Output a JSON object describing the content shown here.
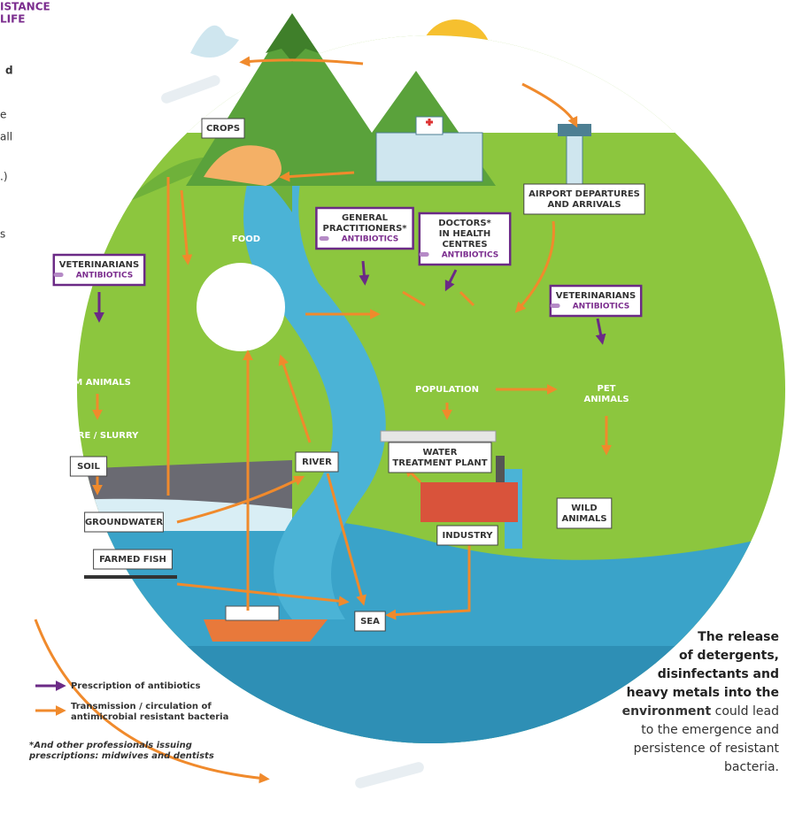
{
  "header": {
    "title_lines": [
      "ISTANCE",
      "LIFE"
    ]
  },
  "left_fragments": [
    "d",
    "e",
    "all",
    ".)",
    "s"
  ],
  "nodes": [
    {
      "label": [
        "CROPS"
      ]
    },
    {
      "label": [
        "FOOD"
      ]
    },
    {
      "label": [
        "GENERAL",
        "PRACTITIONERS*"
      ],
      "tag": "ANTIBIOTICS"
    },
    {
      "label": [
        "DOCTORS*",
        "IN HEALTH",
        "CENTRES"
      ],
      "tag": "ANTIBIOTICS"
    },
    {
      "label": [
        "AIRPORT DEPARTURES",
        "AND ARRIVALS"
      ]
    },
    {
      "label": [
        "VETERINARIANS"
      ],
      "tag": "ANTIBIOTICS"
    },
    {
      "label": [
        "VETERINARIANS"
      ],
      "tag": "ANTIBIOTICS"
    },
    {
      "label": [
        "FARM ANIMALS"
      ]
    },
    {
      "label": [
        "MANURE / SLURRY"
      ]
    },
    {
      "label": [
        "SOIL"
      ]
    },
    {
      "label": [
        "GROUNDWATER"
      ]
    },
    {
      "label": [
        "FARMED FISH"
      ]
    },
    {
      "label": [
        "RIVER"
      ]
    },
    {
      "label": [
        "WATER",
        "TREATMENT PLANT"
      ]
    },
    {
      "label": [
        "INDUSTRY"
      ]
    },
    {
      "label": [
        "SEA"
      ]
    },
    {
      "label": [
        "POPULATION"
      ]
    },
    {
      "label": [
        "PET",
        "ANIMALS"
      ]
    },
    {
      "label": [
        "WILD",
        "ANIMALS"
      ]
    }
  ],
  "legend": [
    {
      "lines": [
        "Prescription of antibiotics"
      ]
    },
    {
      "lines": [
        "Transmission / circulation of",
        "antimicrobial resistant bacteria"
      ]
    }
  ],
  "footnote": [
    "*And other professionals issuing",
    "prescriptions: midwives and dentists"
  ],
  "side_text": {
    "bold": [
      "The release",
      "of detergents,",
      "disinfectants and",
      "heavy metals into the",
      "environment"
    ],
    "regular": [
      "could lead",
      "to the emergence and",
      "persistence of resistant",
      "bacteria."
    ]
  }
}
